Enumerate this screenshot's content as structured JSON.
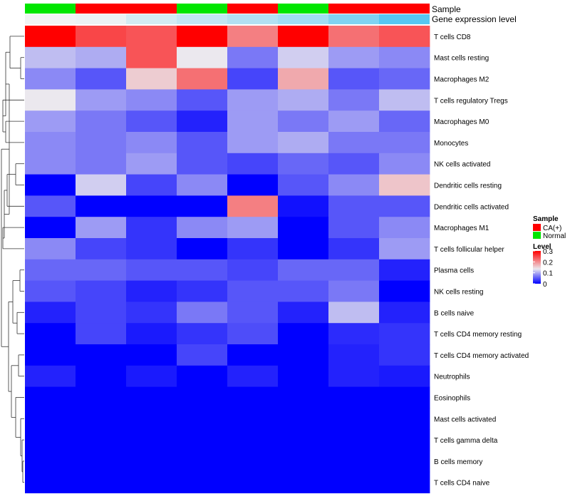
{
  "chart_data": {
    "type": "heatmap",
    "annotation_tracks": [
      {
        "name": "Sample",
        "values": [
          "Normal",
          "CA(+)",
          "CA(+)",
          "Normal",
          "CA(+)",
          "Normal",
          "CA(+)",
          "CA(+)"
        ]
      },
      {
        "name": "Gene expression level",
        "values": [
          0.02,
          0.05,
          0.2,
          0.3,
          0.4,
          0.5,
          0.7,
          0.95
        ]
      }
    ],
    "rows": [
      "T cells CD8",
      "Mast cells resting",
      "Macrophages M2",
      "T cells regulatory  Tregs",
      "Macrophages M0",
      "Monocytes",
      "NK cells activated",
      "Dendritic cells resting",
      "Dendritic cells activated",
      "Macrophages M1",
      "T cells follicular helper",
      "Plasma cells",
      "NK cells resting",
      "B cells naive",
      "T cells CD4 memory resting",
      "T cells CD4 memory activated",
      "Neutrophils",
      "Eosinophils",
      "Mast cells activated",
      "T cells gamma delta",
      "B cells memory",
      "T cells CD4 naive"
    ],
    "values": [
      [
        0.3,
        0.25,
        0.24,
        0.3,
        0.21,
        0.3,
        0.22,
        0.24
      ],
      [
        0.11,
        0.1,
        0.24,
        0.135,
        0.07,
        0.12,
        0.09,
        0.08
      ],
      [
        0.08,
        0.05,
        0.155,
        0.22,
        0.04,
        0.18,
        0.05,
        0.06
      ],
      [
        0.135,
        0.09,
        0.08,
        0.05,
        0.09,
        0.1,
        0.07,
        0.11
      ],
      [
        0.09,
        0.07,
        0.05,
        0.02,
        0.09,
        0.07,
        0.09,
        0.06
      ],
      [
        0.08,
        0.07,
        0.08,
        0.05,
        0.09,
        0.1,
        0.07,
        0.07
      ],
      [
        0.08,
        0.07,
        0.09,
        0.05,
        0.04,
        0.06,
        0.05,
        0.08
      ],
      [
        0.0,
        0.12,
        0.04,
        0.08,
        0.0,
        0.05,
        0.08,
        0.16
      ],
      [
        0.05,
        0.0,
        0.0,
        0.0,
        0.21,
        0.01,
        0.05,
        0.05
      ],
      [
        0.0,
        0.09,
        0.03,
        0.08,
        0.09,
        0.0,
        0.05,
        0.08
      ],
      [
        0.08,
        0.04,
        0.03,
        0.0,
        0.03,
        0.0,
        0.03,
        0.09
      ],
      [
        0.06,
        0.06,
        0.05,
        0.05,
        0.04,
        0.06,
        0.06,
        0.02
      ],
      [
        0.05,
        0.04,
        0.02,
        0.03,
        0.05,
        0.05,
        0.07,
        0.0
      ],
      [
        0.02,
        0.04,
        0.03,
        0.07,
        0.05,
        0.02,
        0.11,
        0.02
      ],
      [
        0.0,
        0.04,
        0.015,
        0.03,
        0.045,
        0.0,
        0.025,
        0.03
      ],
      [
        0.0,
        0.0,
        0.0,
        0.04,
        0.0,
        0.0,
        0.02,
        0.03
      ],
      [
        0.02,
        0.0,
        0.015,
        0.0,
        0.02,
        0.0,
        0.02,
        0.015
      ],
      [
        0.0,
        0.0,
        0.0,
        0.0,
        0.0,
        0.0,
        0.0,
        0.0
      ],
      [
        0.0,
        0.0,
        0.0,
        0.0,
        0.0,
        0.0,
        0.0,
        0.0
      ],
      [
        0.0,
        0.0,
        0.0,
        0.0,
        0.0,
        0.0,
        0.0,
        0.0
      ],
      [
        0.0,
        0.0,
        0.0,
        0.0,
        0.0,
        0.0,
        0.0,
        0.0
      ],
      [
        0.0,
        0.0,
        0.0,
        0.0,
        0.0,
        0.0,
        0.0,
        0.0
      ]
    ],
    "color_scale": {
      "low": "#0000ff",
      "mid": "#ebe8ee",
      "high": "#ff0000",
      "min": 0,
      "mid_value": 0.135,
      "max": 0.3
    },
    "sample_colors": {
      "CA(+)": "#ff0000",
      "Normal": "#00e600"
    },
    "expression_colors": {
      "low": "#f4f4f4",
      "high": "#4ec5f1"
    },
    "legend": {
      "sample_title": "Sample",
      "sample_entries": [
        "CA(+)",
        "Normal"
      ],
      "level_title": "Level",
      "level_ticks": [
        "0.3",
        "0.2",
        "0.1",
        "0"
      ],
      "level_tick_values": [
        0.3,
        0.2,
        0.1,
        0
      ],
      "placement": "right"
    },
    "dendrogram": "rows"
  }
}
